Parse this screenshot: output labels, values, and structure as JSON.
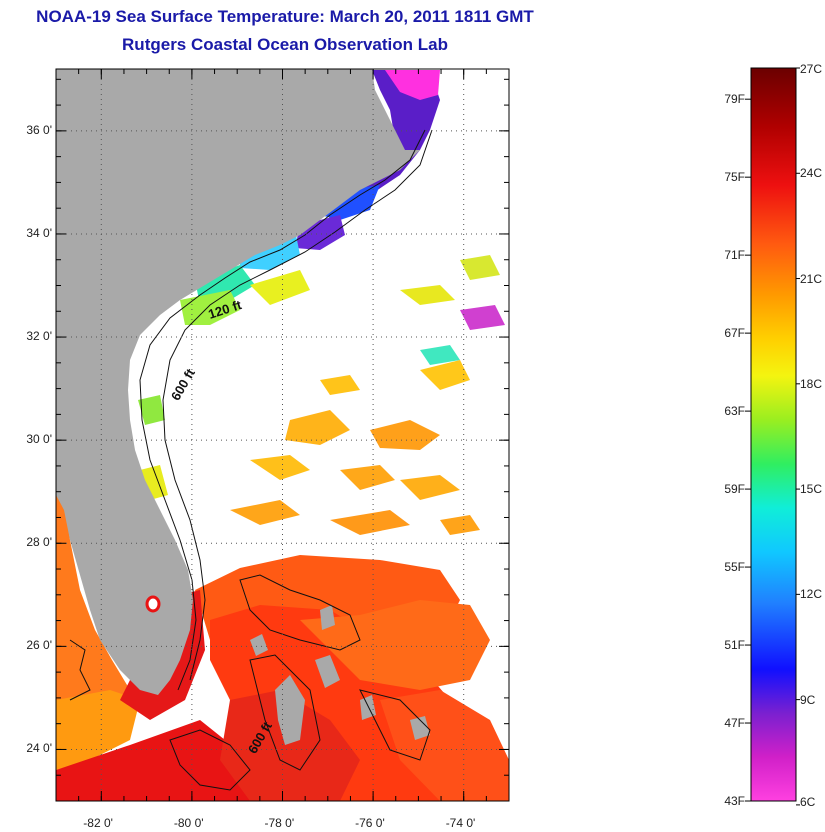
{
  "title": "NOAA-19 Sea Surface Temperature:  March 20, 2011 1811 GMT",
  "subtitle": "Rutgers Coastal Ocean Observation Lab",
  "map": {
    "lon_range": [
      -83,
      -73
    ],
    "lat_range": [
      23,
      37.2
    ],
    "lat_ticks": [
      {
        "value": 36,
        "label": "36 0'"
      },
      {
        "value": 34,
        "label": "34 0'"
      },
      {
        "value": 32,
        "label": "32 0'"
      },
      {
        "value": 30,
        "label": "30 0'"
      },
      {
        "value": 28,
        "label": "28 0'"
      },
      {
        "value": 26,
        "label": "26 0'"
      },
      {
        "value": 24,
        "label": "24 0'"
      }
    ],
    "lon_ticks": [
      {
        "value": -82,
        "label": "-82 0'"
      },
      {
        "value": -80,
        "label": "-80 0'"
      },
      {
        "value": -78,
        "label": "-78 0'"
      },
      {
        "value": -76,
        "label": "-76 0'"
      },
      {
        "value": -74,
        "label": "-74 0'"
      }
    ],
    "contour_labels": [
      {
        "text": "120 ft",
        "lon": -79.6,
        "lat": 32.35
      },
      {
        "text": "600 ft",
        "lon": -80.3,
        "lat": 30.75
      },
      {
        "text": "600 ft",
        "lon": -78.6,
        "lat": 23.9
      }
    ],
    "land_color": "#a9a9a9",
    "ocean_color": "#ffffff"
  },
  "colorbar": {
    "celsius_labels": [
      "27C",
      "24C",
      "21C",
      "18C",
      "15C",
      "12C",
      "9C",
      "6C"
    ],
    "fahrenheit_labels": [
      "79F",
      "75F",
      "71F",
      "67F",
      "63F",
      "59F",
      "55F",
      "51F",
      "47F",
      "43F"
    ],
    "f_values": [
      79,
      75,
      71,
      67,
      63,
      59,
      55,
      51,
      47,
      43
    ],
    "c_values": [
      27,
      24,
      21,
      18,
      15,
      12,
      9,
      6
    ],
    "range_f": [
      43,
      80.6
    ]
  }
}
